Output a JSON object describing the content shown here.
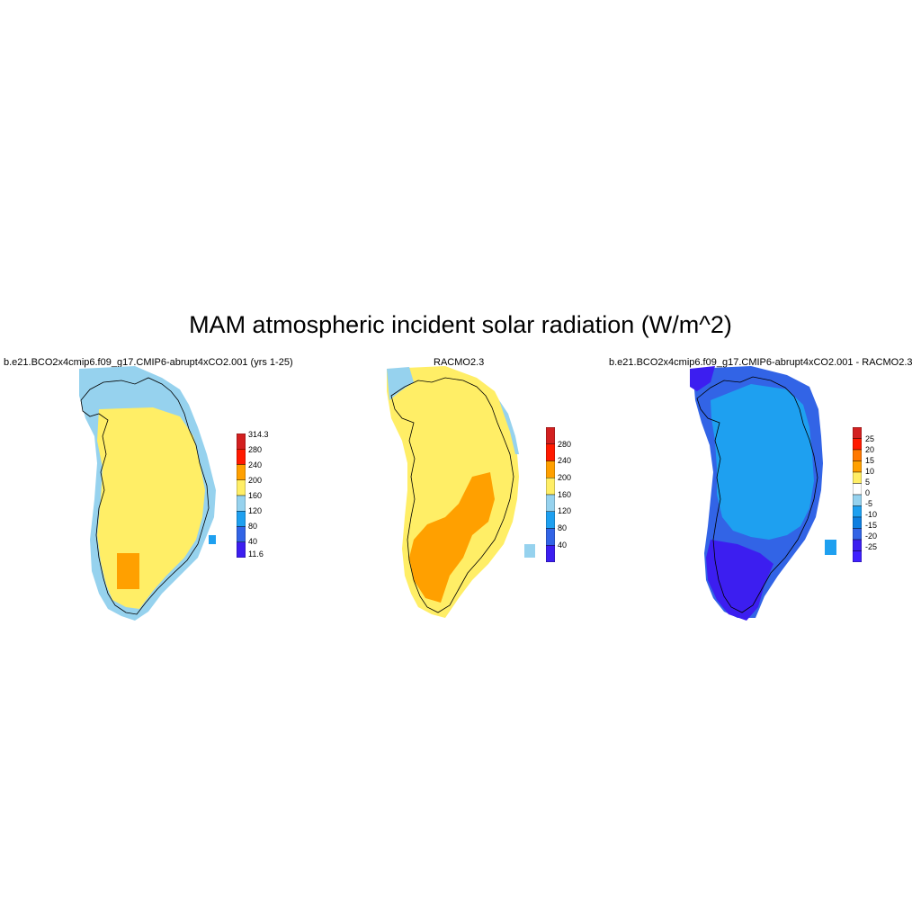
{
  "figure": {
    "title": "MAM atmospheric incident solar radiation (W/m^2)"
  },
  "colors": {
    "water_orange": "#ffa000",
    "yellow": "#ffee66",
    "light_blue": "#96d2ee",
    "mid_blue": "#1ea0f0",
    "blue": "#3264e6",
    "violet": "#3c1ef0"
  },
  "panels": [
    {
      "title": "b.e21.BCO2x4cmip6.f09_g17.CMIP6-abrupt4xCO2.001 (yrs 1-25)",
      "colorbar": {
        "labels": [
          "314.3",
          "280",
          "240",
          "200",
          "160",
          "120",
          "80",
          "40",
          "11.6"
        ],
        "colors": [
          "#d32020",
          "#ff1a00",
          "#ffa000",
          "#ffee66",
          "#96d2ee",
          "#1ea0f0",
          "#3264e6",
          "#3c1ef0"
        ]
      }
    },
    {
      "title": "RACMO2.3",
      "colorbar": {
        "labels": [
          "280",
          "240",
          "200",
          "160",
          "120",
          "80",
          "40"
        ],
        "colors": [
          "#d32020",
          "#ff1a00",
          "#ffa000",
          "#ffee66",
          "#96d2ee",
          "#1ea0f0",
          "#3264e6",
          "#3c1ef0"
        ]
      }
    },
    {
      "title": "b.e21.BCO2x4cmip6.f09_g17.CMIP6-abrupt4xCO2.001 - RACMO2.3",
      "colorbar": {
        "labels": [
          "25",
          "20",
          "15",
          "10",
          "5",
          "0",
          "-5",
          "-10",
          "-15",
          "-20",
          "-25"
        ],
        "colors": [
          "#d32020",
          "#ff1a00",
          "#ff7800",
          "#ffa000",
          "#ffee66",
          "#ffffff",
          "#96d2ee",
          "#1ea0f0",
          "#0e7ee0",
          "#3264e6",
          "#3c1ef0",
          "#4020ff"
        ]
      }
    }
  ]
}
